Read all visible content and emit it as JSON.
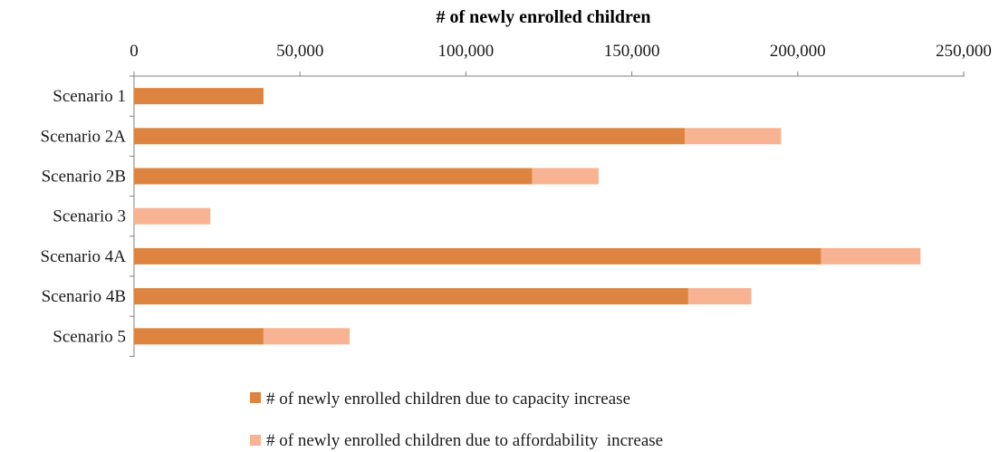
{
  "chart_data": {
    "type": "bar",
    "orientation": "horizontal",
    "stacked": true,
    "title": "# of newly enrolled children",
    "x_axis_position": "top",
    "xlim": [
      0,
      250000
    ],
    "x_ticks": [
      0,
      50000,
      100000,
      150000,
      200000,
      250000
    ],
    "x_tick_labels": [
      "0",
      "50,000",
      "100,000",
      "150,000",
      "200,000",
      "250,000"
    ],
    "categories": [
      "Scenario 1",
      "Scenario 2A",
      "Scenario 2B",
      "Scenario 3",
      "Scenario 4A",
      "Scenario 4B",
      "Scenario 5"
    ],
    "series": [
      {
        "name": "# of newly enrolled children due to capacity increase",
        "color": "#dd8540",
        "values": [
          39000,
          166000,
          120000,
          0,
          207000,
          167000,
          39000
        ]
      },
      {
        "name": "# of newly enrolled children due to affordability  increase",
        "color": "#f7b392",
        "values": [
          0,
          29000,
          20000,
          23000,
          30000,
          19000,
          26000
        ]
      }
    ],
    "grid": false,
    "legend_position": "bottom-center"
  }
}
